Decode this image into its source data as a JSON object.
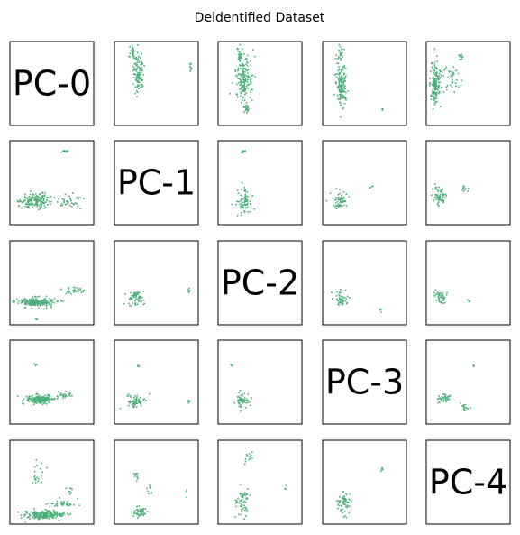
{
  "chart_data": {
    "type": "scatter",
    "title": "Deidentified Dataset",
    "grid": false,
    "n_components": 5,
    "diagonal_labels": [
      "PC-0",
      "PC-1",
      "PC-2",
      "PC-3",
      "PC-4"
    ],
    "point_color": "#4caf7a",
    "panels": [
      {
        "row": 0,
        "col": 1,
        "clusters": [
          [
            0.28,
            0.35,
            0.08,
            0.3,
            110
          ],
          [
            0.2,
            0.12,
            0.04,
            0.12,
            25
          ],
          [
            0.9,
            0.3,
            0.02,
            0.1,
            12
          ]
        ]
      },
      {
        "row": 0,
        "col": 2,
        "clusters": [
          [
            0.3,
            0.45,
            0.12,
            0.35,
            170
          ],
          [
            0.25,
            0.15,
            0.04,
            0.1,
            20
          ],
          [
            0.33,
            0.8,
            0.05,
            0.1,
            20
          ]
        ]
      },
      {
        "row": 0,
        "col": 3,
        "clusters": [
          [
            0.22,
            0.5,
            0.08,
            0.3,
            150
          ],
          [
            0.2,
            0.15,
            0.05,
            0.1,
            25
          ],
          [
            0.7,
            0.8,
            0.02,
            0.02,
            3
          ]
        ]
      },
      {
        "row": 0,
        "col": 4,
        "clusters": [
          [
            0.1,
            0.48,
            0.08,
            0.35,
            150
          ],
          [
            0.3,
            0.45,
            0.12,
            0.2,
            40
          ],
          [
            0.4,
            0.18,
            0.04,
            0.06,
            12
          ]
        ]
      },
      {
        "row": 1,
        "col": 0,
        "clusters": [
          [
            0.28,
            0.7,
            0.22,
            0.12,
            160
          ],
          [
            0.7,
            0.72,
            0.2,
            0.1,
            40
          ],
          [
            0.65,
            0.12,
            0.06,
            0.02,
            10
          ]
        ]
      },
      {
        "row": 1,
        "col": 2,
        "clusters": [
          [
            0.3,
            0.72,
            0.12,
            0.18,
            70
          ],
          [
            0.28,
            0.12,
            0.05,
            0.02,
            8
          ]
        ]
      },
      {
        "row": 1,
        "col": 3,
        "clusters": [
          [
            0.22,
            0.7,
            0.12,
            0.12,
            60
          ],
          [
            0.55,
            0.55,
            0.04,
            0.04,
            4
          ]
        ]
      },
      {
        "row": 1,
        "col": 4,
        "clusters": [
          [
            0.15,
            0.65,
            0.1,
            0.12,
            60
          ],
          [
            0.45,
            0.55,
            0.06,
            0.08,
            12
          ]
        ]
      },
      {
        "row": 2,
        "col": 0,
        "clusters": [
          [
            0.3,
            0.72,
            0.28,
            0.07,
            200
          ],
          [
            0.75,
            0.58,
            0.15,
            0.04,
            30
          ],
          [
            0.3,
            0.92,
            0.02,
            0.02,
            3
          ]
        ]
      },
      {
        "row": 2,
        "col": 1,
        "clusters": [
          [
            0.25,
            0.68,
            0.12,
            0.12,
            60
          ],
          [
            0.88,
            0.6,
            0.02,
            0.08,
            6
          ]
        ]
      },
      {
        "row": 2,
        "col": 3,
        "clusters": [
          [
            0.2,
            0.68,
            0.1,
            0.12,
            50
          ],
          [
            0.68,
            0.82,
            0.02,
            0.04,
            4
          ]
        ]
      },
      {
        "row": 2,
        "col": 4,
        "clusters": [
          [
            0.15,
            0.65,
            0.08,
            0.1,
            45
          ],
          [
            0.5,
            0.7,
            0.02,
            0.02,
            3
          ]
        ]
      },
      {
        "row": 3,
        "col": 0,
        "clusters": [
          [
            0.35,
            0.7,
            0.2,
            0.07,
            170
          ],
          [
            0.65,
            0.65,
            0.12,
            0.05,
            30
          ],
          [
            0.3,
            0.28,
            0.02,
            0.03,
            4
          ]
        ]
      },
      {
        "row": 3,
        "col": 1,
        "clusters": [
          [
            0.25,
            0.72,
            0.14,
            0.1,
            60
          ],
          [
            0.88,
            0.72,
            0.02,
            0.04,
            5
          ],
          [
            0.28,
            0.3,
            0.02,
            0.02,
            3
          ]
        ]
      },
      {
        "row": 3,
        "col": 2,
        "clusters": [
          [
            0.28,
            0.72,
            0.1,
            0.12,
            55
          ],
          [
            0.15,
            0.3,
            0.02,
            0.02,
            3
          ]
        ]
      },
      {
        "row": 3,
        "col": 4,
        "clusters": [
          [
            0.2,
            0.68,
            0.12,
            0.07,
            40
          ],
          [
            0.45,
            0.8,
            0.08,
            0.06,
            15
          ],
          [
            0.55,
            0.3,
            0.02,
            0.02,
            3
          ]
        ]
      },
      {
        "row": 4,
        "col": 0,
        "clusters": [
          [
            0.4,
            0.88,
            0.28,
            0.06,
            200
          ],
          [
            0.6,
            0.75,
            0.22,
            0.06,
            40
          ],
          [
            0.3,
            0.4,
            0.1,
            0.2,
            20
          ],
          [
            0.7,
            0.6,
            0.05,
            0.1,
            8
          ]
        ]
      },
      {
        "row": 4,
        "col": 1,
        "clusters": [
          [
            0.3,
            0.85,
            0.12,
            0.08,
            50
          ],
          [
            0.25,
            0.4,
            0.04,
            0.1,
            10
          ],
          [
            0.85,
            0.6,
            0.02,
            0.05,
            4
          ],
          [
            0.4,
            0.6,
            0.05,
            0.1,
            8
          ]
        ]
      },
      {
        "row": 4,
        "col": 2,
        "clusters": [
          [
            0.28,
            0.72,
            0.1,
            0.22,
            60
          ],
          [
            0.35,
            0.2,
            0.05,
            0.1,
            12
          ],
          [
            0.8,
            0.55,
            0.02,
            0.04,
            3
          ]
        ]
      },
      {
        "row": 4,
        "col": 3,
        "clusters": [
          [
            0.25,
            0.75,
            0.1,
            0.18,
            60
          ],
          [
            0.7,
            0.35,
            0.03,
            0.06,
            5
          ]
        ]
      }
    ]
  }
}
